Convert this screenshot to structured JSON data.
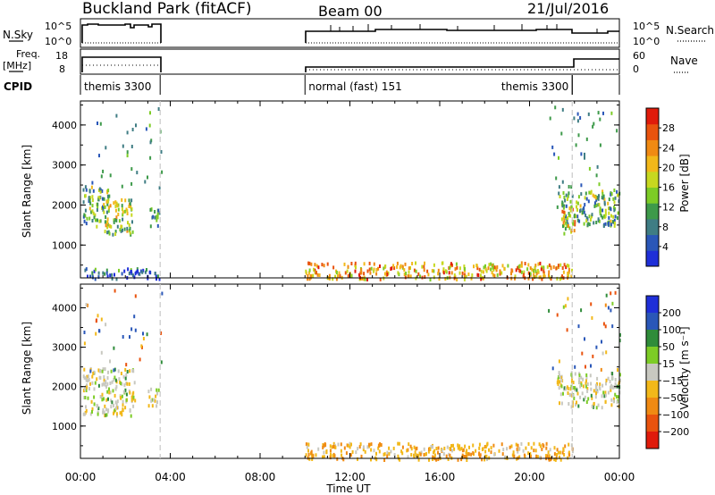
{
  "header": {
    "title": "Buckland Park (fitACF)",
    "beam": "Beam 00",
    "date": "21/Jul/2016"
  },
  "status_panels": {
    "nsky_label": "N.Sky",
    "nsky_ticks": [
      "10^5",
      "10^0"
    ],
    "nsearch_label": "N.Search",
    "nsearch_ticks": [
      "10^5",
      "10^0"
    ],
    "freq_label_1": "Freq.",
    "freq_label_2": "[MHz]",
    "freq_ticks": [
      "18",
      "8"
    ],
    "nave_label": "Nave",
    "nave_ticks": [
      "60",
      "0"
    ],
    "cpid_label": "CPID",
    "cpid_segments": [
      {
        "label": "themis 3300",
        "start": 0.0,
        "end": 3.55
      },
      {
        "label": "normal (fast) 151",
        "start": 10.0,
        "end": 21.9
      },
      {
        "label": "themis 3300",
        "start": 21.9,
        "end": 24.0
      }
    ]
  },
  "chart_data": [
    {
      "type": "heatmap",
      "name": "power",
      "ylabel": "Slant Range [km]",
      "xlabel": "",
      "xlim": [
        0,
        24
      ],
      "ylim": [
        180,
        4600
      ],
      "yticks": [
        1000,
        2000,
        3000,
        4000
      ],
      "colorbar": {
        "label": "Power [dB]",
        "ticks": [
          4,
          8,
          12,
          16,
          20,
          24,
          28
        ],
        "range": [
          0,
          32
        ],
        "colors": [
          "#1f2fd8",
          "#2a57b8",
          "#3f7d84",
          "#3e9a4a",
          "#7dcc26",
          "#c7d820",
          "#f2b81a",
          "#f08a13",
          "#e9530e",
          "#e01b0b"
        ]
      },
      "regions": [
        {
          "t0": 0.1,
          "t1": 1.3,
          "r0": 1500,
          "r1": 2500,
          "level": 12
        },
        {
          "t0": 1.0,
          "t1": 2.3,
          "r0": 1300,
          "r1": 2200,
          "level": 16
        },
        {
          "t0": 3.0,
          "t1": 3.5,
          "r0": 1500,
          "r1": 2000,
          "level": 10
        },
        {
          "t0": 0.1,
          "t1": 3.5,
          "r0": 180,
          "r1": 450,
          "level": 6
        },
        {
          "t0": 10.0,
          "t1": 21.9,
          "r0": 180,
          "r1": 600,
          "level": 22
        },
        {
          "t0": 21.2,
          "t1": 24.0,
          "r0": 1500,
          "r1": 2400,
          "level": 12
        },
        {
          "t0": 21.4,
          "t1": 22.0,
          "r0": 1300,
          "r1": 2000,
          "level": 20
        }
      ]
    },
    {
      "type": "heatmap",
      "name": "velocity",
      "ylabel": "Slant Range [km]",
      "xlabel": "Time UT",
      "xlim": [
        0,
        24
      ],
      "ylim": [
        180,
        4600
      ],
      "yticks": [
        1000,
        2000,
        3000,
        4000
      ],
      "xticks": [
        "00:00",
        "04:00",
        "08:00",
        "12:00",
        "16:00",
        "20:00",
        "00:00"
      ],
      "colorbar": {
        "label": "Velocity [m s⁻¹]",
        "ticks": [
          200,
          100,
          50,
          15,
          -15,
          -50,
          -100,
          -200
        ],
        "colors": [
          "#1f2fd8",
          "#2a57b8",
          "#2f8c3a",
          "#7dcc26",
          "#c8c8c0",
          "#f2b81a",
          "#f08a13",
          "#e9530e",
          "#e01b0b"
        ]
      },
      "regions": [
        {
          "t0": 0.1,
          "t1": 2.4,
          "r0": 1300,
          "r1": 2500,
          "level": 0
        },
        {
          "t0": 3.0,
          "t1": 3.5,
          "r0": 1500,
          "r1": 2000,
          "level": 0
        },
        {
          "t0": 10.0,
          "t1": 21.9,
          "r0": 180,
          "r1": 600,
          "level": -40
        },
        {
          "t0": 21.2,
          "t1": 24.0,
          "r0": 1500,
          "r1": 2400,
          "level": 0
        }
      ]
    }
  ]
}
